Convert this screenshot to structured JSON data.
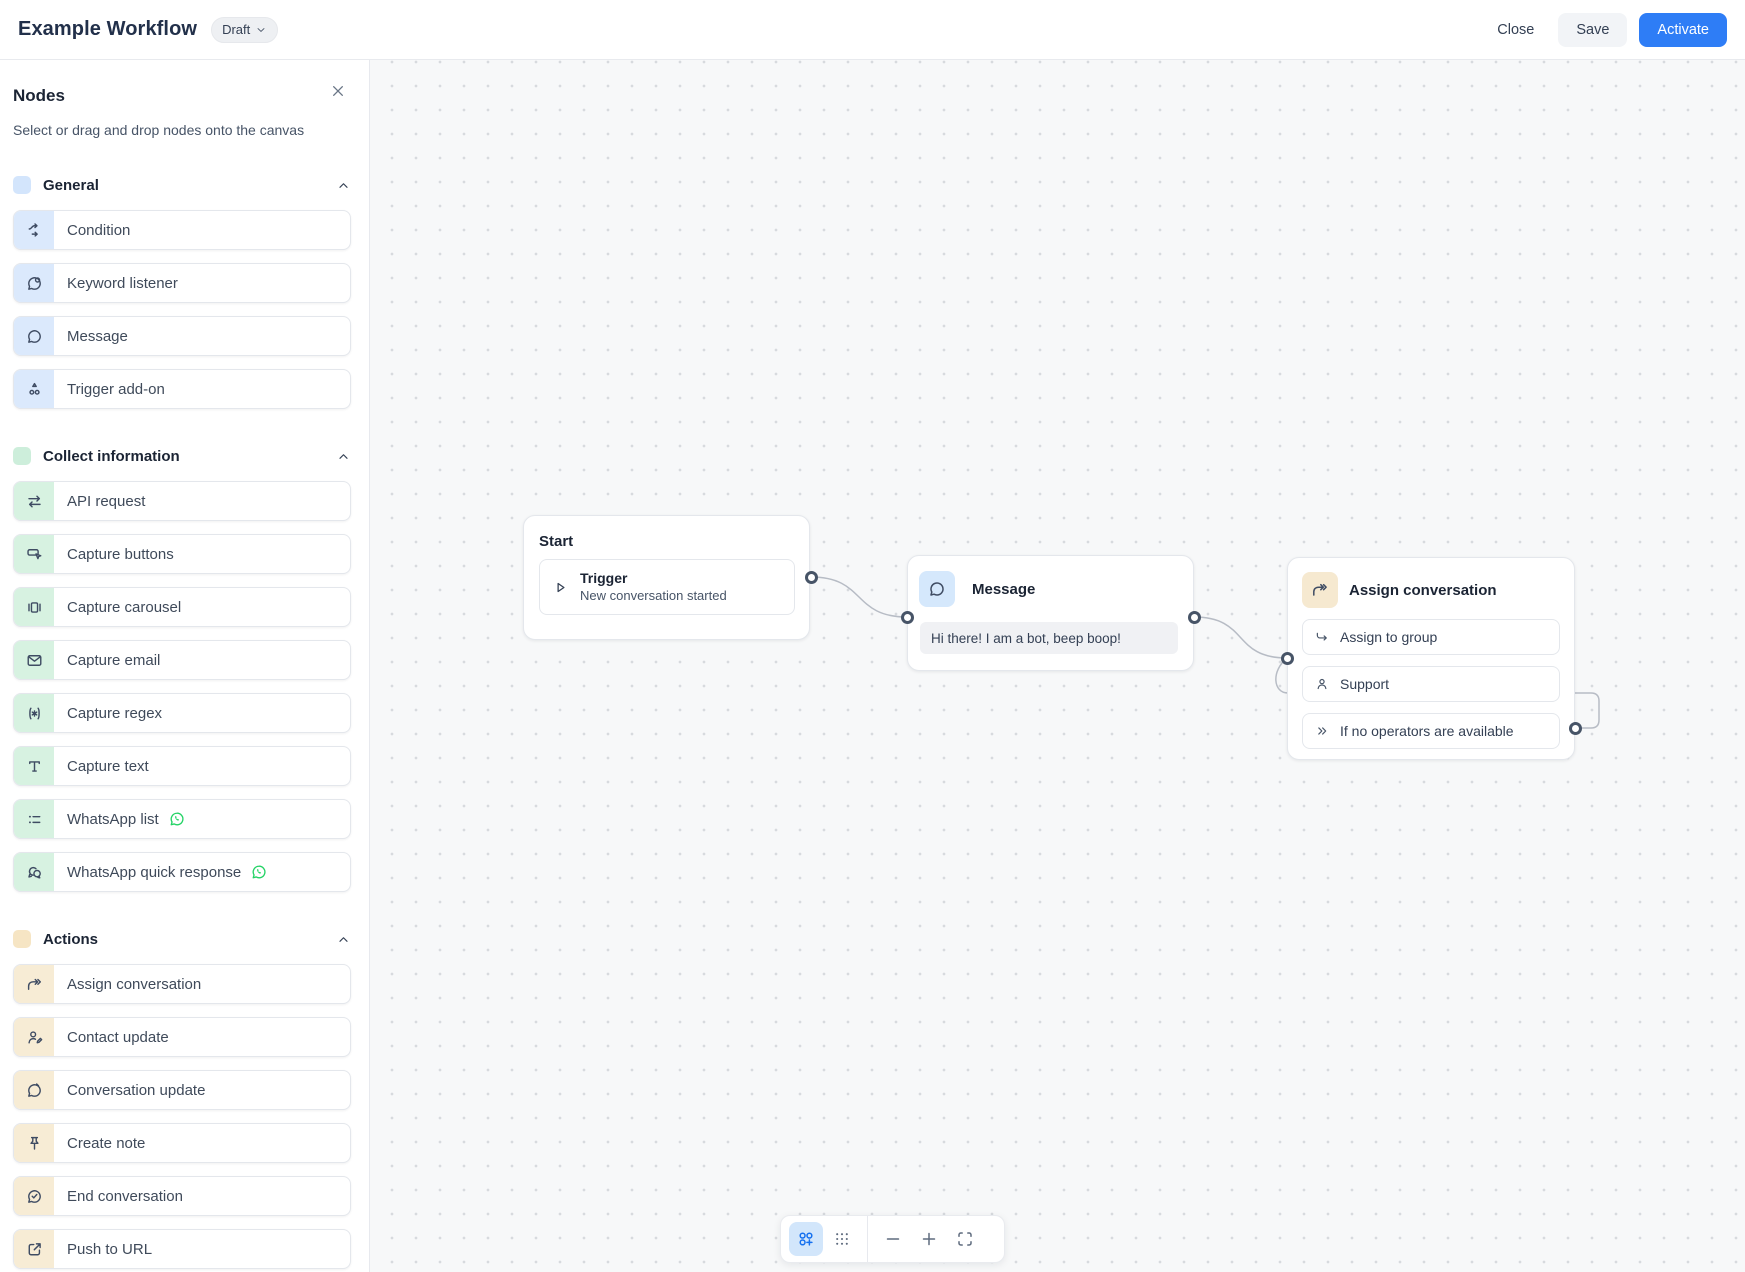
{
  "header": {
    "title": "Example Workflow",
    "status_badge": "Draft",
    "buttons": {
      "close": "Close",
      "save": "Save",
      "activate": "Activate"
    },
    "accent_color": "#2e7df6"
  },
  "sidebar": {
    "title": "Nodes",
    "subtitle": "Select or drag and drop nodes onto the canvas",
    "sections": [
      {
        "id": "general",
        "label": "General",
        "swatch_color": "#d3e5fc",
        "icon_bg": "#dbe9fc",
        "items": [
          {
            "label": "Condition",
            "icon": "condition-icon"
          },
          {
            "label": "Keyword listener",
            "icon": "keyword-listener-icon"
          },
          {
            "label": "Message",
            "icon": "message-bubble-icon"
          },
          {
            "label": "Trigger add-on",
            "icon": "trigger-addon-icon"
          }
        ]
      },
      {
        "id": "collect-information",
        "label": "Collect information",
        "swatch_color": "#cdeedb",
        "icon_bg": "#d7f2e1",
        "items": [
          {
            "label": "API request",
            "icon": "api-request-icon"
          },
          {
            "label": "Capture buttons",
            "icon": "capture-buttons-icon"
          },
          {
            "label": "Capture carousel",
            "icon": "capture-carousel-icon"
          },
          {
            "label": "Capture email",
            "icon": "capture-email-icon"
          },
          {
            "label": "Capture regex",
            "icon": "capture-regex-icon"
          },
          {
            "label": "Capture text",
            "icon": "capture-text-icon"
          },
          {
            "label": "WhatsApp list",
            "icon": "list-icon",
            "badge_icon": "whatsapp-icon"
          },
          {
            "label": "WhatsApp quick response",
            "icon": "quick-response-icon",
            "badge_icon": "whatsapp-icon"
          }
        ]
      },
      {
        "id": "actions",
        "label": "Actions",
        "swatch_color": "#f6e5c4",
        "icon_bg": "#f7ecd5",
        "items": [
          {
            "label": "Assign conversation",
            "icon": "assign-conversation-icon"
          },
          {
            "label": "Contact update",
            "icon": "contact-update-icon"
          },
          {
            "label": "Conversation update",
            "icon": "conversation-update-icon"
          },
          {
            "label": "Create note",
            "icon": "create-note-icon"
          },
          {
            "label": "End conversation",
            "icon": "end-conversation-icon"
          },
          {
            "label": "Push to URL",
            "icon": "push-to-url-icon"
          }
        ]
      }
    ],
    "whatsapp_green": "#25d366"
  },
  "canvas": {
    "nodes": {
      "start": {
        "title": "Start",
        "trigger_label": "Trigger",
        "trigger_description": "New conversation started",
        "icon": "play-icon"
      },
      "message": {
        "title": "Message",
        "icon": "message-bubble-icon",
        "icon_bg": "#d5e8fc",
        "body": "Hi there! I am a bot, beep boop!"
      },
      "assign": {
        "title": "Assign conversation",
        "icon": "assign-conversation-icon",
        "icon_bg": "#f6e9d0",
        "rows": [
          {
            "label": "Assign to group",
            "icon": "corner-arrow-icon"
          },
          {
            "label": "Support",
            "icon": "user-icon"
          },
          {
            "label": "If no operators are available",
            "icon": "double-chevron-icon"
          }
        ]
      }
    },
    "edge_color": "#b7bcc5",
    "port_color": "#475467"
  },
  "toolbar": {
    "buttons": [
      {
        "id": "add-node",
        "icon": "component-add-icon",
        "active": true
      },
      {
        "id": "grid-view",
        "icon": "dots-grid-icon",
        "active": false
      },
      {
        "id": "divider"
      },
      {
        "id": "zoom-out",
        "icon": "minus-icon",
        "active": false
      },
      {
        "id": "zoom-in",
        "icon": "plus-icon",
        "active": false
      },
      {
        "id": "fit-view",
        "icon": "fit-view-icon",
        "active": false
      }
    ]
  }
}
